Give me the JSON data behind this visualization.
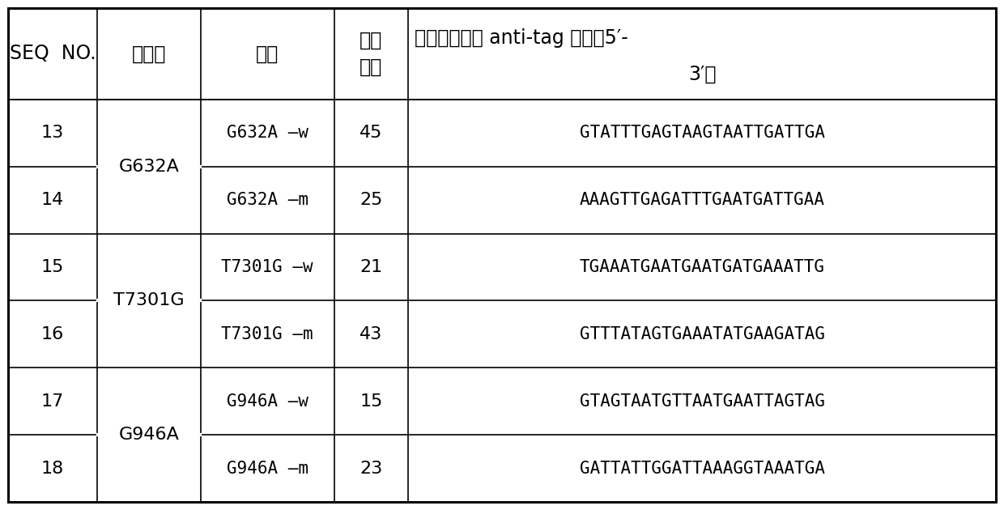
{
  "col_headers_left": [
    "SEQ NO.",
    "基因型",
    "类型",
    "微球\n编号"
  ],
  "col_header_right_line1": "微球上对应的anti-tag序列（5′-",
  "col_header_right_line2": "3′）",
  "rows": [
    [
      "13",
      "G632A",
      "G632A –w",
      "45",
      "GTATTTGAGTAAGTAATTGATTGA"
    ],
    [
      "14",
      "",
      "G632A –m",
      "25",
      "AAAGTTGAGATTTGAATGATTGAA"
    ],
    [
      "15",
      "T7301G",
      "T7301G –w",
      "21",
      "TGAAATGAATGAATGATGAAATTG"
    ],
    [
      "16",
      "",
      "T7301G –m",
      "43",
      "GTTTATAGTGAAATATGAAGATAG"
    ],
    [
      "17",
      "G946A",
      "G946A –w",
      "15",
      "GTAGTAATGTTAATGAATTAGTAG"
    ],
    [
      "18",
      "",
      "G946A –m",
      "23",
      "GATTATTGGATTAAAGGTAAATGA"
    ]
  ],
  "merged_gene": [
    {
      "label": "G632A",
      "rows": [
        0,
        1
      ]
    },
    {
      "label": "T7301G",
      "rows": [
        2,
        3
      ]
    },
    {
      "label": "G946A",
      "rows": [
        4,
        5
      ]
    }
  ],
  "bg_color": "#ffffff",
  "border_color": "#000000",
  "text_color": "#000000"
}
